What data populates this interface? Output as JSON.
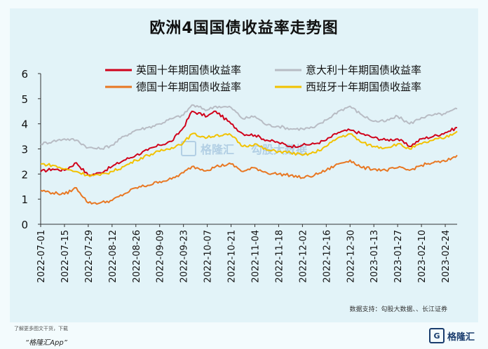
{
  "title": "欧洲4国国债收益率走势图",
  "source": "数据支持：勾股大数据、、长江证券",
  "footer": {
    "note": "了解更多图文干货，下载",
    "app": "“格隆汇App”",
    "logo_text": "格隆汇"
  },
  "watermark": {
    "left": "格隆汇",
    "right": "勾股大数据"
  },
  "chart_data": {
    "type": "line",
    "title": "欧洲4国国债收益率走势图",
    "xlabel": "",
    "ylabel": "",
    "ylim": [
      0,
      6
    ],
    "yticks": [
      "0",
      "1",
      "2",
      "3",
      "4",
      "5",
      "6"
    ],
    "xlim": [
      "2022-07-01",
      "2023-03-03"
    ],
    "xticks": [
      "2022-07-01",
      "2022-07-15",
      "2022-07-29",
      "2022-08-12",
      "2022-08-26",
      "2022-09-09",
      "2022-09-23",
      "2022-10-07",
      "2022-10-21",
      "2022-11-04",
      "2022-11-18",
      "2022-12-02",
      "2022-12-16",
      "2022-12-30",
      "2023-01-13",
      "2023-01-27",
      "2023-02-10",
      "2023-02-24"
    ],
    "legend_position": "top",
    "grid": false,
    "series": [
      {
        "name": "英国十年期国债收益率",
        "color": "#d0021b",
        "points": [
          [
            "2022-07-01",
            2.1
          ],
          [
            "2022-07-08",
            2.2
          ],
          [
            "2022-07-15",
            2.15
          ],
          [
            "2022-07-22",
            2.45
          ],
          [
            "2022-07-29",
            1.95
          ],
          [
            "2022-08-05",
            2.05
          ],
          [
            "2022-08-12",
            2.3
          ],
          [
            "2022-08-19",
            2.55
          ],
          [
            "2022-08-26",
            2.75
          ],
          [
            "2022-09-02",
            2.95
          ],
          [
            "2022-09-09",
            3.15
          ],
          [
            "2022-09-16",
            3.3
          ],
          [
            "2022-09-23",
            3.85
          ],
          [
            "2022-09-28",
            4.5
          ],
          [
            "2022-10-07",
            4.3
          ],
          [
            "2022-10-12",
            4.5
          ],
          [
            "2022-10-21",
            4.0
          ],
          [
            "2022-10-28",
            3.6
          ],
          [
            "2022-11-04",
            3.55
          ],
          [
            "2022-11-11",
            3.35
          ],
          [
            "2022-11-18",
            3.25
          ],
          [
            "2022-11-25",
            3.1
          ],
          [
            "2022-12-02",
            3.15
          ],
          [
            "2022-12-09",
            3.2
          ],
          [
            "2022-12-16",
            3.35
          ],
          [
            "2022-12-23",
            3.65
          ],
          [
            "2022-12-30",
            3.75
          ],
          [
            "2023-01-06",
            3.6
          ],
          [
            "2023-01-13",
            3.45
          ],
          [
            "2023-01-20",
            3.35
          ],
          [
            "2023-01-27",
            3.4
          ],
          [
            "2023-02-03",
            3.1
          ],
          [
            "2023-02-10",
            3.4
          ],
          [
            "2023-02-17",
            3.5
          ],
          [
            "2023-02-24",
            3.65
          ],
          [
            "2023-03-03",
            3.85
          ]
        ]
      },
      {
        "name": "意大利十年期国债收益率",
        "color": "#b8bcc4",
        "points": [
          [
            "2022-07-01",
            3.2
          ],
          [
            "2022-07-08",
            3.3
          ],
          [
            "2022-07-15",
            3.4
          ],
          [
            "2022-07-22",
            3.35
          ],
          [
            "2022-07-29",
            3.05
          ],
          [
            "2022-08-05",
            3.0
          ],
          [
            "2022-08-12",
            3.15
          ],
          [
            "2022-08-19",
            3.5
          ],
          [
            "2022-08-26",
            3.75
          ],
          [
            "2022-09-02",
            3.85
          ],
          [
            "2022-09-09",
            4.0
          ],
          [
            "2022-09-16",
            4.2
          ],
          [
            "2022-09-23",
            4.35
          ],
          [
            "2022-09-28",
            4.75
          ],
          [
            "2022-10-07",
            4.55
          ],
          [
            "2022-10-12",
            4.7
          ],
          [
            "2022-10-21",
            4.65
          ],
          [
            "2022-10-28",
            4.2
          ],
          [
            "2022-11-04",
            4.3
          ],
          [
            "2022-11-11",
            3.95
          ],
          [
            "2022-11-18",
            3.9
          ],
          [
            "2022-11-25",
            3.8
          ],
          [
            "2022-12-02",
            3.8
          ],
          [
            "2022-12-09",
            3.85
          ],
          [
            "2022-12-16",
            4.15
          ],
          [
            "2022-12-23",
            4.5
          ],
          [
            "2022-12-30",
            4.7
          ],
          [
            "2023-01-06",
            4.35
          ],
          [
            "2023-01-13",
            4.1
          ],
          [
            "2023-01-20",
            4.1
          ],
          [
            "2023-01-27",
            4.3
          ],
          [
            "2023-02-03",
            4.0
          ],
          [
            "2023-02-10",
            4.25
          ],
          [
            "2023-02-17",
            4.35
          ],
          [
            "2023-02-24",
            4.4
          ],
          [
            "2023-03-03",
            4.6
          ]
        ]
      },
      {
        "name": "德国十年期国债收益率",
        "color": "#e87722",
        "points": [
          [
            "2022-07-01",
            1.35
          ],
          [
            "2022-07-08",
            1.25
          ],
          [
            "2022-07-15",
            1.2
          ],
          [
            "2022-07-22",
            1.45
          ],
          [
            "2022-07-29",
            0.85
          ],
          [
            "2022-08-05",
            0.85
          ],
          [
            "2022-08-12",
            0.95
          ],
          [
            "2022-08-19",
            1.2
          ],
          [
            "2022-08-26",
            1.45
          ],
          [
            "2022-09-02",
            1.55
          ],
          [
            "2022-09-09",
            1.7
          ],
          [
            "2022-09-16",
            1.8
          ],
          [
            "2022-09-23",
            2.05
          ],
          [
            "2022-09-28",
            2.3
          ],
          [
            "2022-10-07",
            2.15
          ],
          [
            "2022-10-12",
            2.3
          ],
          [
            "2022-10-21",
            2.4
          ],
          [
            "2022-10-28",
            2.1
          ],
          [
            "2022-11-04",
            2.25
          ],
          [
            "2022-11-11",
            2.05
          ],
          [
            "2022-11-18",
            2.0
          ],
          [
            "2022-11-25",
            1.95
          ],
          [
            "2022-12-02",
            1.85
          ],
          [
            "2022-12-09",
            1.95
          ],
          [
            "2022-12-16",
            2.15
          ],
          [
            "2022-12-23",
            2.4
          ],
          [
            "2022-12-30",
            2.55
          ],
          [
            "2023-01-06",
            2.25
          ],
          [
            "2023-01-13",
            2.2
          ],
          [
            "2023-01-20",
            2.15
          ],
          [
            "2023-01-27",
            2.25
          ],
          [
            "2023-02-03",
            2.15
          ],
          [
            "2023-02-10",
            2.35
          ],
          [
            "2023-02-17",
            2.45
          ],
          [
            "2023-02-24",
            2.5
          ],
          [
            "2023-03-03",
            2.75
          ]
        ]
      },
      {
        "name": "西班牙十年期国债收益率",
        "color": "#f2c200",
        "points": [
          [
            "2022-07-01",
            2.4
          ],
          [
            "2022-07-08",
            2.35
          ],
          [
            "2022-07-15",
            2.2
          ],
          [
            "2022-07-22",
            2.1
          ],
          [
            "2022-07-29",
            1.95
          ],
          [
            "2022-08-05",
            1.95
          ],
          [
            "2022-08-12",
            2.1
          ],
          [
            "2022-08-19",
            2.3
          ],
          [
            "2022-08-26",
            2.55
          ],
          [
            "2022-09-02",
            2.75
          ],
          [
            "2022-09-09",
            2.9
          ],
          [
            "2022-09-16",
            3.05
          ],
          [
            "2022-09-23",
            3.25
          ],
          [
            "2022-09-28",
            3.6
          ],
          [
            "2022-10-07",
            3.45
          ],
          [
            "2022-10-12",
            3.55
          ],
          [
            "2022-10-21",
            3.55
          ],
          [
            "2022-10-28",
            3.1
          ],
          [
            "2022-11-04",
            3.2
          ],
          [
            "2022-11-11",
            2.95
          ],
          [
            "2022-11-18",
            2.9
          ],
          [
            "2022-11-25",
            2.85
          ],
          [
            "2022-12-02",
            2.75
          ],
          [
            "2022-12-09",
            2.85
          ],
          [
            "2022-12-16",
            3.1
          ],
          [
            "2022-12-23",
            3.45
          ],
          [
            "2022-12-30",
            3.6
          ],
          [
            "2023-01-06",
            3.25
          ],
          [
            "2023-01-13",
            3.1
          ],
          [
            "2023-01-20",
            3.05
          ],
          [
            "2023-01-27",
            3.2
          ],
          [
            "2023-02-03",
            3.0
          ],
          [
            "2023-02-10",
            3.2
          ],
          [
            "2023-02-17",
            3.35
          ],
          [
            "2023-02-24",
            3.45
          ],
          [
            "2023-03-03",
            3.7
          ]
        ]
      }
    ]
  }
}
